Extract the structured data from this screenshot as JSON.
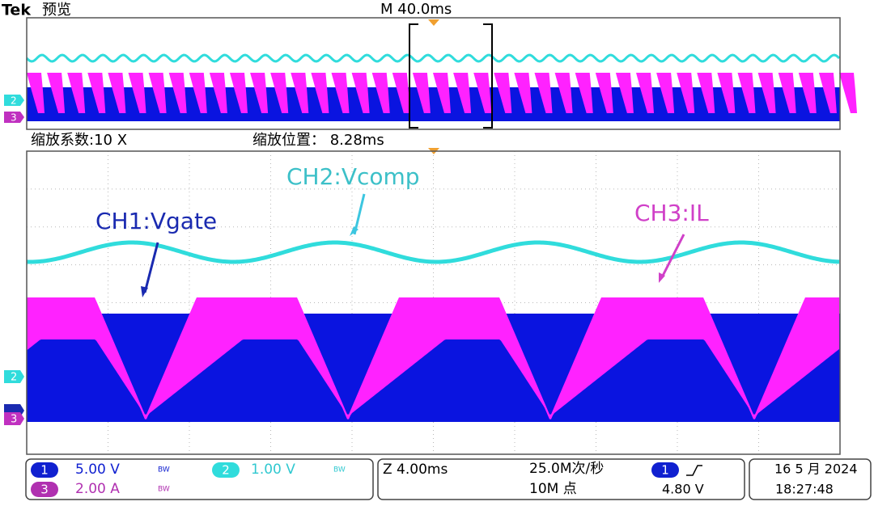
{
  "header": {
    "brand": "Tek",
    "mode": "预览",
    "timebase": "M 40.0ms"
  },
  "zoom": {
    "factor": "缩放系数:10 X",
    "position": "缩放位置： 8.28ms"
  },
  "annotations": {
    "ch2": "CH2:Vcomp",
    "ch1": "CH1:Vgate",
    "ch3": "CH3:IL"
  },
  "channel_markers": {
    "overview": [
      "2",
      "3"
    ],
    "main": [
      "2",
      "3"
    ]
  },
  "status": {
    "channels": [
      {
        "id": "1",
        "scale": "5.00 V",
        "bw": "BW"
      },
      {
        "id": "2",
        "scale": "1.00 V",
        "bw": "BW"
      },
      {
        "id": "3",
        "scale": "2.00 A",
        "bw": "BW"
      }
    ],
    "horizontal": {
      "zoom": "Z 4.00ms",
      "sample_rate": "25.0M次/秒",
      "record_length": "10M 点"
    },
    "trigger": {
      "source": "1",
      "level": "4.80 V"
    },
    "date": "16 5 月 2024",
    "time": "18:27:48"
  }
}
